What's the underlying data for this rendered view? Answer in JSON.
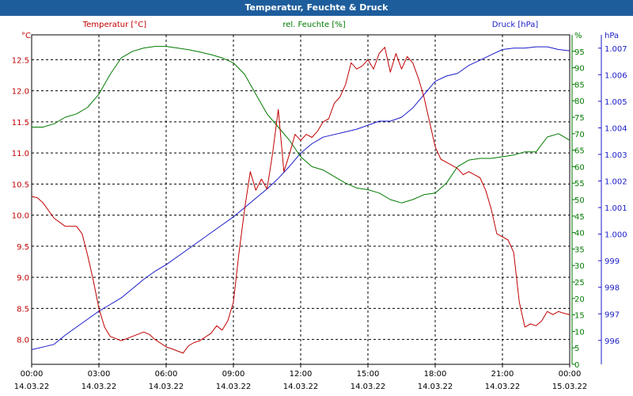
{
  "window_title": "Temperatur, Feuchte & Druck",
  "colors": {
    "temperature": "#c00000",
    "humidity": "#007a00",
    "pressure": "#1a1ac8",
    "titlebar": "#1e5d9c",
    "grid": "#000000"
  },
  "chart_data": {
    "type": "line",
    "title": "Temperatur, Feuchte & Druck",
    "grid": true,
    "x_range": [
      "14.03.22 00:00",
      "15.03.22 00:00"
    ],
    "x_tick_labels": [
      {
        "time": "00:00",
        "date": "14.03.22"
      },
      {
        "time": "03:00",
        "date": "14.03.22"
      },
      {
        "time": "06:00",
        "date": "14.03.22"
      },
      {
        "time": "09:00",
        "date": "14.03.22"
      },
      {
        "time": "12:00",
        "date": "14.03.22"
      },
      {
        "time": "15:00",
        "date": "14.03.22"
      },
      {
        "time": "18:00",
        "date": "14.03.22"
      },
      {
        "time": "21:00",
        "date": "14.03.22"
      },
      {
        "time": "00:00",
        "date": "15.03.22"
      }
    ],
    "axes": {
      "temperature": {
        "label": "Temperatur [°C]",
        "unit": "°C",
        "range": [
          7.6,
          12.9
        ],
        "ticks": [
          "8.0",
          "8.5",
          "9.0",
          "9.5",
          "10.0",
          "10.5",
          "11.0",
          "11.5",
          "12.0",
          "12.5"
        ]
      },
      "humidity": {
        "label": "rel. Feuchte [%]",
        "unit": "%",
        "range": [
          0,
          100
        ],
        "ticks": [
          "0",
          "5",
          "10",
          "15",
          "20",
          "25",
          "30",
          "35",
          "40",
          "45",
          "50",
          "55",
          "60",
          "65",
          "70",
          "75",
          "80",
          "85",
          "90",
          "95",
          "%"
        ]
      },
      "pressure": {
        "label": "Druck [hPa]",
        "unit": "hPa",
        "range": [
          995.1,
          1007.5
        ],
        "ticks": [
          "996",
          "997",
          "998",
          "999",
          "1.000",
          "1.001",
          "1.002",
          "1.003",
          "1.004",
          "1.005",
          "1.006",
          "1.007"
        ]
      }
    },
    "series": [
      {
        "name": "Temperatur [°C]",
        "axis": "temperature",
        "x": [
          "14.03.22 00:00",
          "14.03.22 00:15",
          "14.03.22 00:30",
          "14.03.22 01:00",
          "14.03.22 01:30",
          "14.03.22 02:00",
          "14.03.22 02:15",
          "14.03.22 02:30",
          "14.03.22 02:45",
          "14.03.22 03:00",
          "14.03.22 03:15",
          "14.03.22 03:30",
          "14.03.22 04:00",
          "14.03.22 04:30",
          "14.03.22 05:00",
          "14.03.22 05:15",
          "14.03.22 05:30",
          "14.03.22 06:00",
          "14.03.22 06:15",
          "14.03.22 06:45",
          "14.03.22 07:00",
          "14.03.22 07:15",
          "14.03.22 07:30",
          "14.03.22 08:00",
          "14.03.22 08:15",
          "14.03.22 08:30",
          "14.03.22 08:45",
          "14.03.22 09:00",
          "14.03.22 09:15",
          "14.03.22 09:30",
          "14.03.22 09:45",
          "14.03.22 10:00",
          "14.03.22 10:15",
          "14.03.22 10:30",
          "14.03.22 10:45",
          "14.03.22 11:00",
          "14.03.22 11:15",
          "14.03.22 11:30",
          "14.03.22 11:45",
          "14.03.22 12:00",
          "14.03.22 12:15",
          "14.03.22 12:30",
          "14.03.22 12:45",
          "14.03.22 13:00",
          "14.03.22 13:15",
          "14.03.22 13:30",
          "14.03.22 13:45",
          "14.03.22 14:00",
          "14.03.22 14:15",
          "14.03.22 14:30",
          "14.03.22 14:45",
          "14.03.22 15:00",
          "14.03.22 15:15",
          "14.03.22 15:30",
          "14.03.22 15:45",
          "14.03.22 16:00",
          "14.03.22 16:15",
          "14.03.22 16:30",
          "14.03.22 16:45",
          "14.03.22 17:00",
          "14.03.22 17:15",
          "14.03.22 17:30",
          "14.03.22 17:45",
          "14.03.22 18:00",
          "14.03.22 18:15",
          "14.03.22 18:30",
          "14.03.22 18:45",
          "14.03.22 19:00",
          "14.03.22 19:15",
          "14.03.22 19:30",
          "14.03.22 19:45",
          "14.03.22 20:00",
          "14.03.22 20:15",
          "14.03.22 20:30",
          "14.03.22 20:45",
          "14.03.22 21:00",
          "14.03.22 21:15",
          "14.03.22 21:30",
          "14.03.22 21:45",
          "14.03.22 22:00",
          "14.03.22 22:15",
          "14.03.22 22:30",
          "14.03.22 22:45",
          "14.03.22 23:00",
          "14.03.22 23:15",
          "14.03.22 23:30",
          "14.03.22 23:45",
          "15.03.22 00:00"
        ],
        "values": [
          10.3,
          10.28,
          10.2,
          9.95,
          9.82,
          9.82,
          9.7,
          9.35,
          8.95,
          8.5,
          8.2,
          8.05,
          7.98,
          8.05,
          8.12,
          8.08,
          8.0,
          7.88,
          7.85,
          7.78,
          7.9,
          7.95,
          7.98,
          8.1,
          8.22,
          8.15,
          8.3,
          8.6,
          9.4,
          10.1,
          10.7,
          10.4,
          10.58,
          10.42,
          11.0,
          11.7,
          10.7,
          10.98,
          11.3,
          11.2,
          11.3,
          11.25,
          11.35,
          11.5,
          11.55,
          11.8,
          11.9,
          12.1,
          12.45,
          12.35,
          12.4,
          12.5,
          12.35,
          12.6,
          12.7,
          12.3,
          12.6,
          12.35,
          12.55,
          12.45,
          12.2,
          11.9,
          11.5,
          11.1,
          10.9,
          10.85,
          10.8,
          10.75,
          10.65,
          10.7,
          10.65,
          10.6,
          10.4,
          10.1,
          9.7,
          9.65,
          9.6,
          9.4,
          8.6,
          8.2,
          8.25,
          8.22,
          8.3,
          8.45,
          8.4,
          8.45,
          8.42,
          8.4
        ],
        "color": "#c00000"
      },
      {
        "name": "rel. Feuchte [%]",
        "axis": "humidity",
        "x": [
          "14.03.22 00:00",
          "14.03.22 00:30",
          "14.03.22 01:00",
          "14.03.22 01:30",
          "14.03.22 02:00",
          "14.03.22 02:30",
          "14.03.22 03:00",
          "14.03.22 03:30",
          "14.03.22 04:00",
          "14.03.22 04:30",
          "14.03.22 05:00",
          "14.03.22 05:30",
          "14.03.22 06:00",
          "14.03.22 06:30",
          "14.03.22 07:00",
          "14.03.22 07:30",
          "14.03.22 08:00",
          "14.03.22 08:30",
          "14.03.22 09:00",
          "14.03.22 09:30",
          "14.03.22 10:00",
          "14.03.22 10:30",
          "14.03.22 11:00",
          "14.03.22 11:30",
          "14.03.22 12:00",
          "14.03.22 12:30",
          "14.03.22 13:00",
          "14.03.22 13:30",
          "14.03.22 14:00",
          "14.03.22 14:30",
          "14.03.22 15:00",
          "14.03.22 15:30",
          "14.03.22 16:00",
          "14.03.22 16:30",
          "14.03.22 17:00",
          "14.03.22 17:30",
          "14.03.22 18:00",
          "14.03.22 18:30",
          "14.03.22 19:00",
          "14.03.22 19:30",
          "14.03.22 20:00",
          "14.03.22 20:30",
          "14.03.22 21:00",
          "14.03.22 21:30",
          "14.03.22 22:00",
          "14.03.22 22:30",
          "14.03.22 23:00",
          "14.03.22 23:30",
          "15.03.22 00:00"
        ],
        "values": [
          72,
          72,
          73,
          75,
          76,
          78,
          82,
          88,
          93,
          95,
          96,
          96.5,
          96.5,
          96,
          95.5,
          94.8,
          94,
          93,
          91.5,
          88,
          82,
          76,
          72,
          68,
          63,
          60,
          59,
          57,
          55,
          53.5,
          53,
          52,
          50,
          49,
          50,
          51.5,
          52,
          55,
          60,
          62,
          62.5,
          62.5,
          63,
          63.5,
          64.5,
          64.5,
          69,
          70,
          68
        ],
        "color": "#007a00"
      },
      {
        "name": "Druck [hPa]",
        "axis": "pressure",
        "x": [
          "14.03.22 00:00",
          "14.03.22 00:30",
          "14.03.22 01:00",
          "14.03.22 01:30",
          "14.03.22 02:00",
          "14.03.22 02:30",
          "14.03.22 03:00",
          "14.03.22 03:30",
          "14.03.22 04:00",
          "14.03.22 04:30",
          "14.03.22 05:00",
          "14.03.22 05:30",
          "14.03.22 06:00",
          "14.03.22 06:30",
          "14.03.22 07:00",
          "14.03.22 07:30",
          "14.03.22 08:00",
          "14.03.22 08:30",
          "14.03.22 09:00",
          "14.03.22 09:30",
          "14.03.22 10:00",
          "14.03.22 10:30",
          "14.03.22 11:00",
          "14.03.22 11:30",
          "14.03.22 12:00",
          "14.03.22 12:30",
          "14.03.22 13:00",
          "14.03.22 13:30",
          "14.03.22 14:00",
          "14.03.22 14:30",
          "14.03.22 15:00",
          "14.03.22 15:30",
          "14.03.22 16:00",
          "14.03.22 16:30",
          "14.03.22 17:00",
          "14.03.22 17:30",
          "14.03.22 18:00",
          "14.03.22 18:30",
          "14.03.22 19:00",
          "14.03.22 19:30",
          "14.03.22 20:00",
          "14.03.22 20:30",
          "14.03.22 21:00",
          "14.03.22 21:30",
          "14.03.22 22:00",
          "14.03.22 22:30",
          "14.03.22 23:00",
          "14.03.22 23:30",
          "15.03.22 00:00"
        ],
        "values": [
          995.65,
          995.75,
          995.85,
          996.2,
          996.5,
          996.8,
          997.1,
          997.35,
          997.6,
          997.95,
          998.3,
          998.6,
          998.85,
          999.15,
          999.45,
          999.75,
          1000.05,
          1000.35,
          1000.65,
          1001.0,
          1001.35,
          1001.7,
          1002.1,
          1002.55,
          1003.05,
          1003.4,
          1003.65,
          1003.75,
          1003.85,
          1003.95,
          1004.1,
          1004.25,
          1004.25,
          1004.4,
          1004.75,
          1005.25,
          1005.75,
          1005.95,
          1006.05,
          1006.35,
          1006.55,
          1006.75,
          1006.95,
          1007.0,
          1007.0,
          1007.05,
          1007.05,
          1006.95,
          1006.9
        ],
        "color": "#1a1ac8"
      }
    ]
  }
}
